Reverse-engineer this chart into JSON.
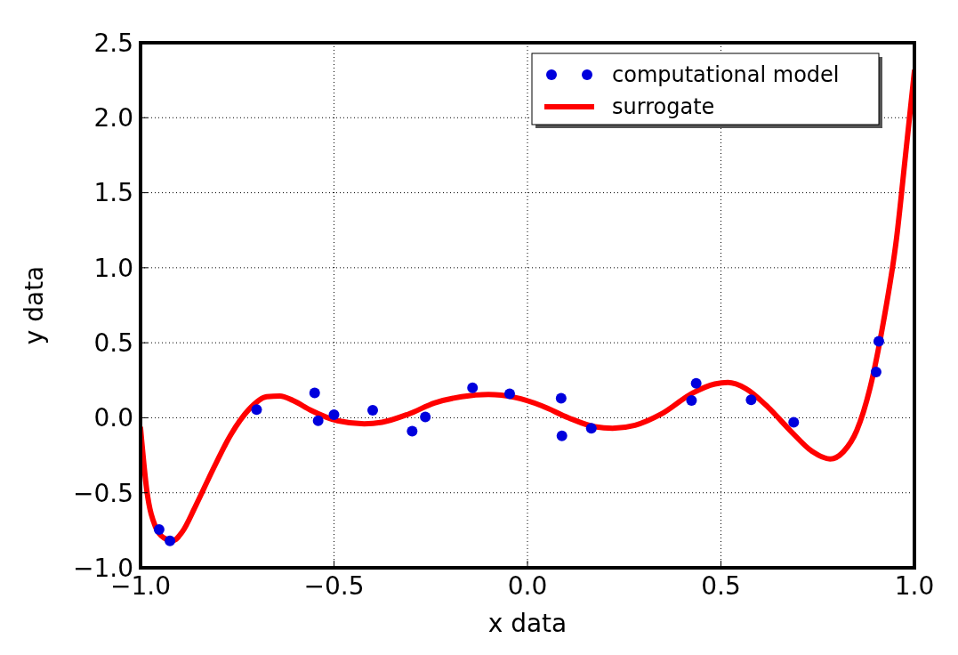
{
  "chart_data": {
    "type": "scatter",
    "xlabel": "x data",
    "ylabel": "y data",
    "xlim": [
      -1,
      1
    ],
    "ylim": [
      -1,
      2.5
    ],
    "xticks": [
      {
        "value": -1,
        "label": "−1.0"
      },
      {
        "value": -0.5,
        "label": "−0.5"
      },
      {
        "value": 0,
        "label": "0.0"
      },
      {
        "value": 0.5,
        "label": "0.5"
      },
      {
        "value": 1,
        "label": "1.0"
      }
    ],
    "yticks": [
      {
        "value": -1,
        "label": "−1.0"
      },
      {
        "value": -0.5,
        "label": "−0.5"
      },
      {
        "value": 0,
        "label": "0.0"
      },
      {
        "value": 0.5,
        "label": "0.5"
      },
      {
        "value": 1,
        "label": "1.0"
      },
      {
        "value": 1.5,
        "label": "1.5"
      },
      {
        "value": 2,
        "label": "2.0"
      },
      {
        "value": 2.5,
        "label": "2.5"
      }
    ],
    "grid": true,
    "legend": "top right",
    "series": [
      {
        "name": "computational model",
        "marker": "circle",
        "color": "#0000dd",
        "x": [
          -0.952,
          -0.924,
          -0.7,
          -0.55,
          -0.541,
          -0.5,
          -0.4,
          -0.298,
          -0.264,
          -0.142,
          -0.046,
          0.087,
          0.089,
          0.165,
          0.424,
          0.436,
          0.578,
          0.688,
          0.901,
          0.908
        ],
        "values": [
          -0.745,
          -0.82,
          0.055,
          0.165,
          -0.02,
          0.02,
          0.05,
          -0.09,
          0.005,
          0.2,
          0.16,
          0.13,
          -0.12,
          -0.07,
          0.115,
          0.23,
          0.12,
          -0.03,
          0.305,
          0.51
        ]
      },
      {
        "name": "surrogate",
        "type": "line",
        "line_style": "solid",
        "color": "#ff0000",
        "x": [
          -1,
          -0.984,
          -0.961,
          -0.94,
          -0.917,
          -0.892,
          -0.858,
          -0.812,
          -0.766,
          -0.72,
          -0.674,
          -0.64,
          -0.606,
          -0.56,
          -0.491,
          -0.422,
          -0.376,
          -0.307,
          -0.239,
          -0.17,
          -0.101,
          -0.032,
          0.037,
          0.106,
          0.174,
          0.22,
          0.278,
          0.346,
          0.427,
          0.484,
          0.518,
          0.564,
          0.622,
          0.679,
          0.736,
          0.782,
          0.817,
          0.851,
          0.885,
          0.92,
          0.954,
          0.977,
          1
        ],
        "values": [
          -0.07,
          -0.48,
          -0.73,
          -0.8,
          -0.82,
          -0.76,
          -0.59,
          -0.34,
          -0.11,
          0.055,
          0.14,
          0.145,
          0.115,
          0.05,
          -0.02,
          -0.04,
          -0.03,
          0.025,
          0.1,
          0.14,
          0.155,
          0.135,
          0.08,
          0,
          -0.06,
          -0.07,
          -0.05,
          0.025,
          0.165,
          0.225,
          0.235,
          0.195,
          0.07,
          -0.085,
          -0.225,
          -0.275,
          -0.225,
          -0.085,
          0.195,
          0.64,
          1.2,
          1.75,
          2.31
        ]
      }
    ]
  }
}
